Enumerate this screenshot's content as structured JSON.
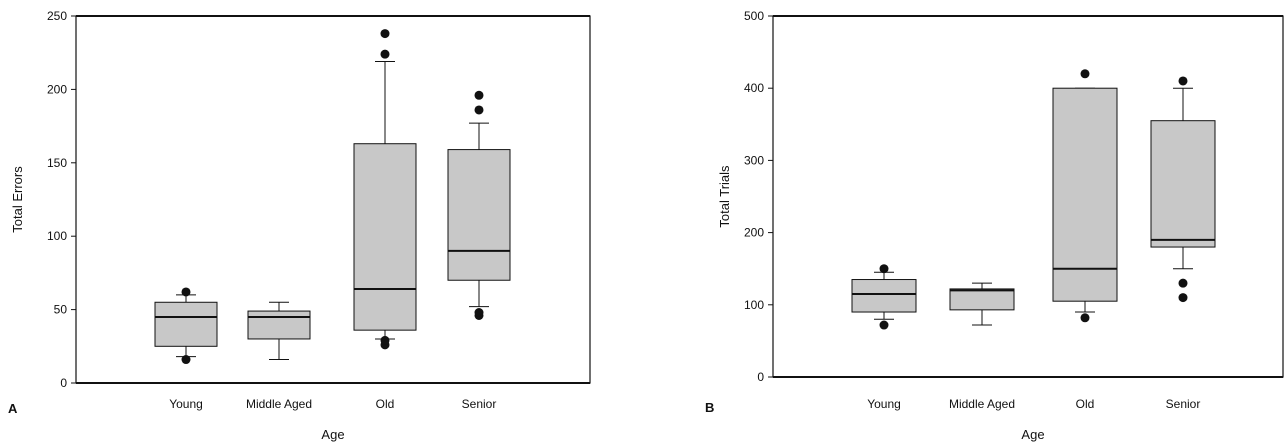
{
  "figure": {
    "style": {
      "box_fill": "#c8c8c8",
      "line_color": "#111111",
      "background": "#ffffff"
    }
  },
  "chart_data": [
    {
      "type": "box",
      "panel_label": "A",
      "xlabel": "Age",
      "ylabel": "Total Errors",
      "ylim": [
        0,
        250
      ],
      "yticks": [
        0,
        50,
        100,
        150,
        200,
        250
      ],
      "grid": false,
      "categories": [
        "Young",
        "Middle Aged",
        "Old",
        "Senior"
      ],
      "boxes": [
        {
          "category": "Young",
          "whisker_low": 18,
          "q1": 25,
          "median": 45,
          "q3": 55,
          "whisker_high": 60,
          "outliers": [
            16,
            62
          ]
        },
        {
          "category": "Middle Aged",
          "whisker_low": 16,
          "q1": 30,
          "median": 45,
          "q3": 49,
          "whisker_high": 55,
          "outliers": []
        },
        {
          "category": "Old",
          "whisker_low": 30,
          "q1": 36,
          "median": 64,
          "q3": 163,
          "whisker_high": 219,
          "outliers": [
            26,
            29,
            224,
            238
          ]
        },
        {
          "category": "Senior",
          "whisker_low": 52,
          "q1": 70,
          "median": 90,
          "q3": 159,
          "whisker_high": 177,
          "outliers": [
            46,
            48,
            186,
            196
          ]
        }
      ]
    },
    {
      "type": "box",
      "panel_label": "B",
      "xlabel": "Age",
      "ylabel": "Total Trials",
      "ylim": [
        0,
        500
      ],
      "yticks": [
        0,
        100,
        200,
        300,
        400,
        500
      ],
      "grid": false,
      "categories": [
        "Young",
        "Middle Aged",
        "Old",
        "Senior"
      ],
      "boxes": [
        {
          "category": "Young",
          "whisker_low": 80,
          "q1": 90,
          "median": 115,
          "q3": 135,
          "whisker_high": 145,
          "outliers": [
            72,
            150
          ]
        },
        {
          "category": "Middle Aged",
          "whisker_low": 72,
          "q1": 93,
          "median": 120,
          "q3": 122,
          "whisker_high": 130,
          "outliers": []
        },
        {
          "category": "Old",
          "whisker_low": 90,
          "q1": 105,
          "median": 150,
          "q3": 400,
          "whisker_high": 400,
          "outliers": [
            82,
            420
          ]
        },
        {
          "category": "Senior",
          "whisker_low": 150,
          "q1": 180,
          "median": 190,
          "q3": 355,
          "whisker_high": 400,
          "outliers": [
            110,
            130,
            410
          ]
        }
      ]
    }
  ]
}
